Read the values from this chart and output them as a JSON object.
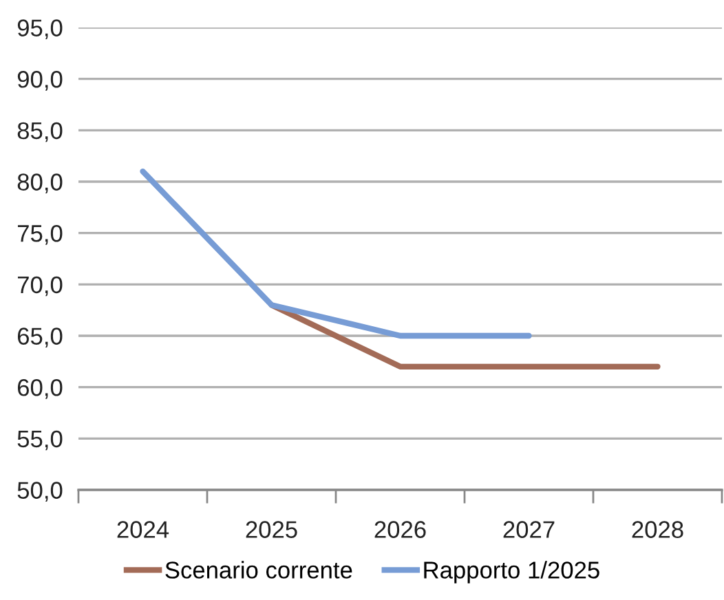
{
  "chart_data": {
    "type": "line",
    "categories": [
      "2024",
      "2025",
      "2026",
      "2027",
      "2028"
    ],
    "series": [
      {
        "name": "Scenario corrente",
        "color": "#a36b57",
        "values": [
          null,
          68,
          62,
          62,
          62
        ]
      },
      {
        "name": "Rapporto 1/2025",
        "color": "#779cd5",
        "values": [
          81,
          68,
          65,
          65,
          null
        ]
      }
    ],
    "ylim": [
      50,
      95
    ],
    "yticks": [
      {
        "value": 50,
        "label": "50,0"
      },
      {
        "value": 55,
        "label": "55,0"
      },
      {
        "value": 60,
        "label": "60,0"
      },
      {
        "value": 65,
        "label": "65,0"
      },
      {
        "value": 70,
        "label": "70,0"
      },
      {
        "value": 75,
        "label": "75,0"
      },
      {
        "value": 80,
        "label": "80,0"
      },
      {
        "value": 85,
        "label": "85,0"
      },
      {
        "value": 90,
        "label": "90,0"
      },
      {
        "value": 95,
        "label": "95,0"
      }
    ],
    "grid": "y",
    "legend": "bottom",
    "marker": "none",
    "line_style": "solid"
  }
}
